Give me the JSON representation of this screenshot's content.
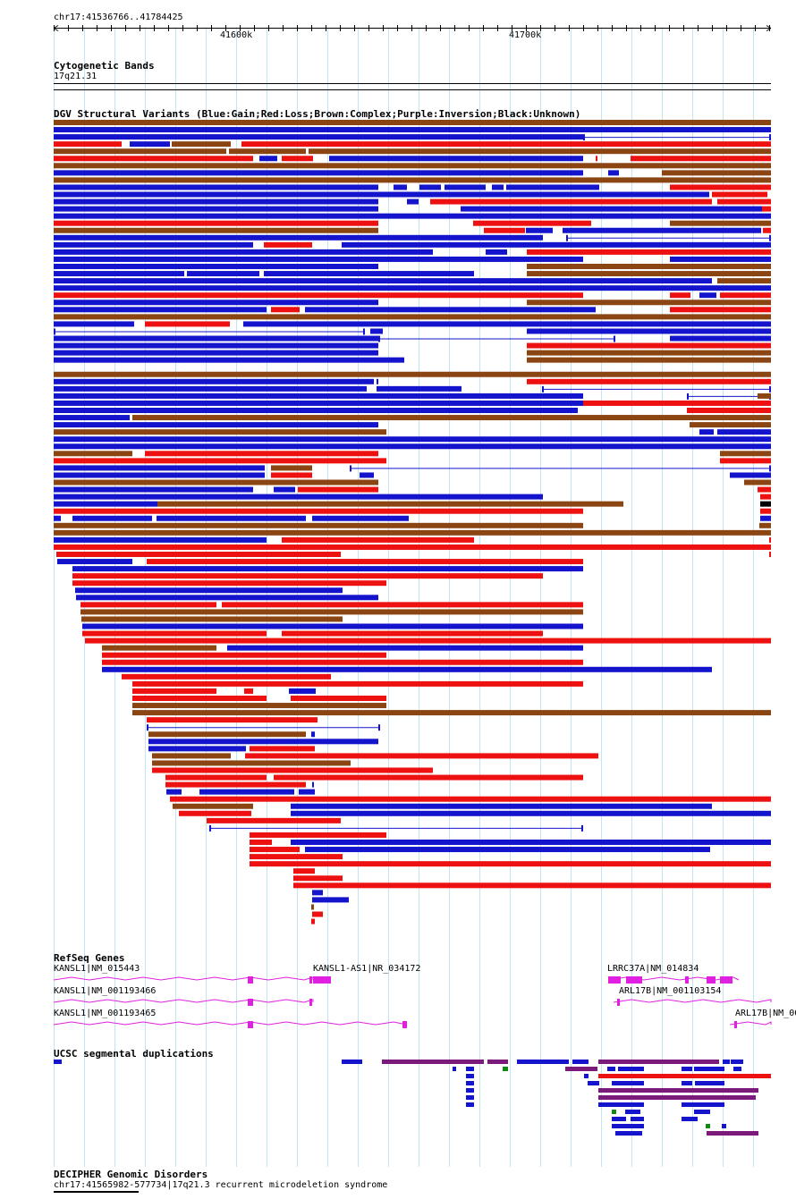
{
  "ruler": {
    "region": "chr17:41536766..41784425",
    "tick_labels": [
      "41600k",
      "41700k"
    ]
  },
  "cytoband": {
    "title": "Cytogenetic Bands",
    "band": "17q21.31"
  },
  "dgv": {
    "title": "DGV Structural Variants (Blue:Gain;Red:Loss;Brown:Complex;Purple:Inversion;Black:Unknown)",
    "colors": {
      "gain": "#1414cc",
      "loss": "#ee1111",
      "complex": "#8b4513",
      "inversion": "#800080",
      "unknown": "#000000"
    }
  },
  "refseq": {
    "title": "RefSeq Genes",
    "genes": [
      {
        "label": "KANSL1|NM_015443"
      },
      {
        "label": "KANSL1-AS1|NR_034172"
      },
      {
        "label": "LRRC37A|NM_014834"
      },
      {
        "label": "KANSL1|NM_001193466"
      },
      {
        "label": "ARL17B|NM_001103154"
      },
      {
        "label": "KANSL1|NM_001193465"
      },
      {
        "label": "ARL17B|NM_00"
      }
    ],
    "color": "#e020e0"
  },
  "segdup": {
    "title": "UCSC segmental duplications",
    "colors": {
      "blue": "#1414cc",
      "purple": "#7b1a7b",
      "green": "#118811"
    }
  },
  "decipher": {
    "title": "DECIPHER Genomic Disorders",
    "item": "chr17:41565982-577734|17q21.3 recurrent microdeletion syndrome"
  }
}
